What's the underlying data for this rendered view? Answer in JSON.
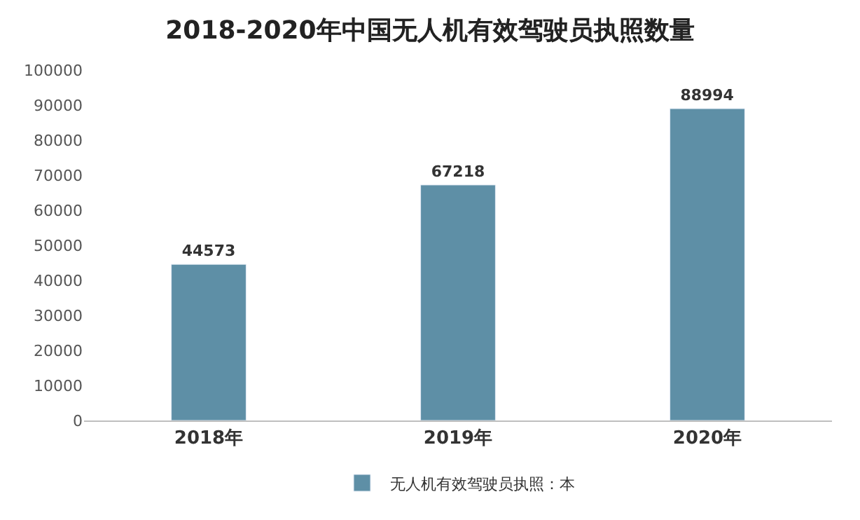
{
  "chart_data": {
    "type": "bar",
    "title": "2018-2020年中国无人机有效驾驶员执照数量",
    "categories": [
      "2018年",
      "2019年",
      "2020年"
    ],
    "series": [
      {
        "name": "无人机有效驾驶员执照：本",
        "color": "#5e8fa6",
        "values": [
          44573,
          67218,
          88994
        ]
      }
    ],
    "ylim": [
      0,
      100000
    ],
    "yticks": [
      0,
      10000,
      20000,
      30000,
      40000,
      50000,
      60000,
      70000,
      80000,
      90000,
      100000
    ],
    "data_labels": true,
    "legend": "bottom"
  }
}
